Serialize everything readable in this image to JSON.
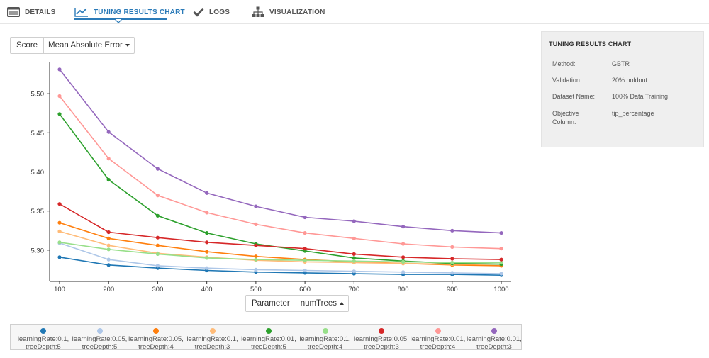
{
  "tabs": [
    {
      "label": "DETAILS",
      "icon": "details-icon"
    },
    {
      "label": "TUNING RESULTS CHART",
      "icon": "line-chart-icon",
      "active": true
    },
    {
      "label": "LOGS",
      "icon": "checkmark-icon"
    },
    {
      "label": "VISUALIZATION",
      "icon": "hierarchy-icon"
    }
  ],
  "score_selector": {
    "label": "Score",
    "value": "Mean Absolute Error"
  },
  "parameter_selector": {
    "label": "Parameter",
    "value": "numTrees"
  },
  "info_panel": {
    "title": "TUNING RESULTS CHART",
    "rows": [
      {
        "label": "Method:",
        "value": "GBTR"
      },
      {
        "label": "Validation:",
        "value": "20% holdout"
      },
      {
        "label": "Dataset Name:",
        "value": "100% Data Training"
      },
      {
        "label": "Objective",
        "label2": "Column:",
        "value": "tip_percentage"
      }
    ]
  },
  "chart_data": {
    "type": "line",
    "title": "",
    "xlabel": "numTrees",
    "ylabel": "Mean Absolute Error",
    "x": [
      100,
      200,
      300,
      400,
      500,
      600,
      700,
      800,
      900,
      1000
    ],
    "xlim": [
      100,
      1000
    ],
    "ylim": [
      5.26,
      5.54
    ],
    "y_ticks": [
      5.3,
      5.35,
      5.4,
      5.45,
      5.5
    ],
    "y_tick_labels": [
      "5.30",
      "5.35",
      "5.40",
      "5.45",
      "5.50"
    ],
    "x_tick_labels": [
      "100",
      "200",
      "300",
      "400",
      "500",
      "600",
      "700",
      "800",
      "900",
      "1000"
    ],
    "grid": false,
    "legend": "bottom",
    "series": [
      {
        "name": "learningRate:0.1, treeDepth:5",
        "line1": "learningRate:0.1,",
        "line2": "treeDepth:5",
        "color": "#1f77b4",
        "values": [
          5.291,
          5.281,
          5.277,
          5.274,
          5.272,
          5.271,
          5.27,
          5.269,
          5.269,
          5.268
        ]
      },
      {
        "name": "learningRate:0.05, treeDepth:5",
        "line1": "learningRate:0.05,",
        "line2": "treeDepth:5",
        "color": "#aec7e8",
        "values": [
          5.309,
          5.288,
          5.28,
          5.277,
          5.275,
          5.274,
          5.273,
          5.272,
          5.271,
          5.27
        ]
      },
      {
        "name": "learningRate:0.05, treeDepth:4",
        "line1": "learningRate:0.05,",
        "line2": "treeDepth:4",
        "color": "#ff7f0e",
        "values": [
          5.335,
          5.315,
          5.306,
          5.298,
          5.292,
          5.288,
          5.285,
          5.283,
          5.281,
          5.28
        ]
      },
      {
        "name": "learningRate:0.1, treeDepth:3",
        "line1": "learningRate:0.1,",
        "line2": "treeDepth:3",
        "color": "#ffbb78",
        "values": [
          5.324,
          5.306,
          5.296,
          5.291,
          5.287,
          5.285,
          5.284,
          5.283,
          5.282,
          5.282
        ]
      },
      {
        "name": "learningRate:0.01, treeDepth:5",
        "line1": "learningRate:0.01,",
        "line2": "treeDepth:5",
        "color": "#2ca02c",
        "values": [
          5.474,
          5.39,
          5.344,
          5.322,
          5.308,
          5.299,
          5.29,
          5.286,
          5.283,
          5.282
        ]
      },
      {
        "name": "learningRate:0.1, treeDepth:4",
        "line1": "learningRate:0.1,",
        "line2": "treeDepth:4",
        "color": "#98df8a",
        "values": [
          5.31,
          5.301,
          5.295,
          5.29,
          5.288,
          5.287,
          5.286,
          5.285,
          5.284,
          5.284
        ]
      },
      {
        "name": "learningRate:0.05, treeDepth:3",
        "line1": "learningRate:0.05,",
        "line2": "treeDepth:3",
        "color": "#d62728",
        "values": [
          5.359,
          5.323,
          5.316,
          5.31,
          5.306,
          5.302,
          5.295,
          5.291,
          5.289,
          5.288
        ]
      },
      {
        "name": "learningRate:0.01, treeDepth:4",
        "line1": "learningRate:0.01,",
        "line2": "treeDepth:4",
        "color": "#ff9896",
        "values": [
          5.497,
          5.417,
          5.37,
          5.348,
          5.333,
          5.322,
          5.315,
          5.308,
          5.304,
          5.302
        ]
      },
      {
        "name": "learningRate:0.01, treeDepth:3",
        "line1": "learningRate:0.01,",
        "line2": "treeDepth:3",
        "color": "#9467bd",
        "values": [
          5.531,
          5.451,
          5.404,
          5.373,
          5.356,
          5.342,
          5.337,
          5.33,
          5.325,
          5.322
        ]
      }
    ]
  }
}
